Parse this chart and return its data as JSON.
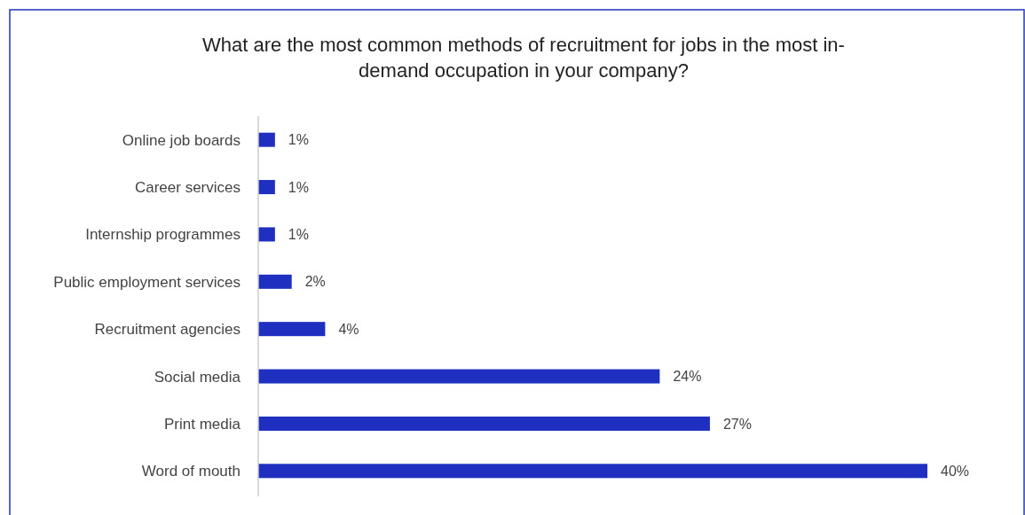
{
  "chart_data": {
    "type": "bar",
    "orientation": "horizontal",
    "title": "What are the most common methods  of recruitment for jobs in the most in-demand occupation in your company?",
    "categories": [
      "Online job boards",
      "Career services",
      "Internship programmes",
      "Public employment services",
      "Recruitment agencies",
      "Social media",
      "Print media",
      "Word of mouth"
    ],
    "values": [
      1,
      1,
      1,
      2,
      4,
      24,
      27,
      40
    ],
    "value_labels": [
      "1%",
      "1%",
      "1%",
      "2%",
      "4%",
      "24%",
      "27%",
      "40%"
    ],
    "color": "#1f2fbf"
  }
}
